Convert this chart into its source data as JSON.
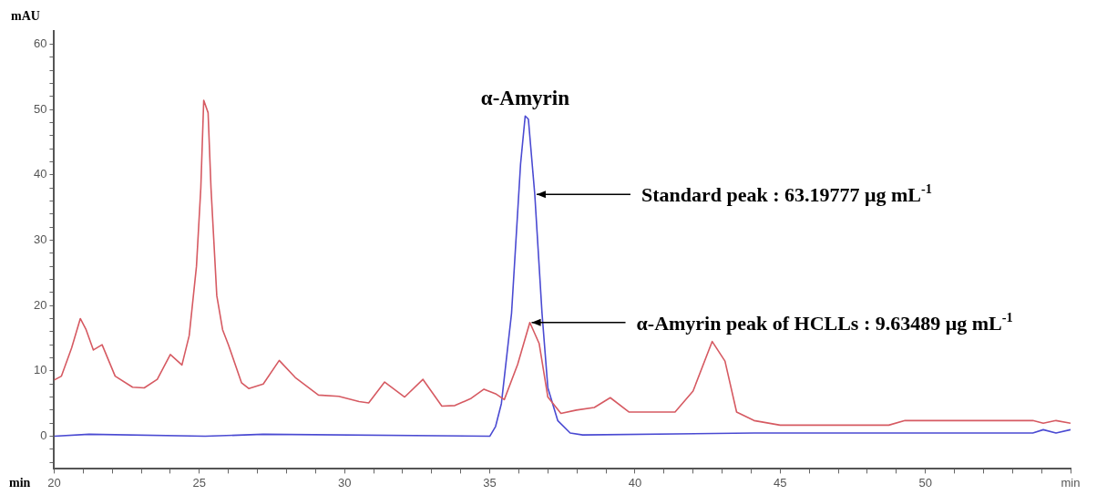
{
  "chart_data": {
    "type": "line",
    "xlabel": "min",
    "ylabel": "mAU",
    "xlim": [
      20,
      55
    ],
    "ylim": [
      -5,
      62
    ],
    "xticks": [
      20,
      {
        "value": 21,
        "label": null
      },
      {
        "value": 22,
        "label": null
      },
      {
        "value": 23,
        "label": null
      },
      {
        "value": 24,
        "label": null
      },
      25,
      {
        "value": 26,
        "label": null
      },
      {
        "value": 27,
        "label": null
      },
      {
        "value": 28,
        "label": null
      },
      {
        "value": 29,
        "label": null
      },
      30,
      {
        "value": 31,
        "label": null
      },
      {
        "value": 32,
        "label": null
      },
      {
        "value": 33,
        "label": null
      },
      {
        "value": 34,
        "label": null
      },
      35,
      {
        "value": 36,
        "label": null
      },
      {
        "value": 37,
        "label": null
      },
      {
        "value": 38,
        "label": null
      },
      {
        "value": 39,
        "label": null
      },
      40,
      {
        "value": 41,
        "label": null
      },
      {
        "value": 42,
        "label": null
      },
      {
        "value": 43,
        "label": null
      },
      {
        "value": 44,
        "label": null
      },
      45,
      {
        "value": 46,
        "label": null
      },
      {
        "value": 47,
        "label": null
      },
      {
        "value": 48,
        "label": null
      },
      {
        "value": 49,
        "label": null
      },
      50,
      {
        "value": 51,
        "label": null
      },
      {
        "value": 52,
        "label": null
      },
      {
        "value": 53,
        "label": null
      },
      {
        "value": 54,
        "label": null
      },
      {
        "value": 55,
        "label": "min"
      }
    ],
    "yticks": [
      {
        "value": -4,
        "label": null
      },
      {
        "value": -2,
        "label": null
      },
      0,
      {
        "value": 2,
        "label": null
      },
      {
        "value": 4,
        "label": null
      },
      {
        "value": 6,
        "label": null
      },
      {
        "value": 8,
        "label": null
      },
      10,
      {
        "value": 12,
        "label": null
      },
      {
        "value": 14,
        "label": null
      },
      {
        "value": 16,
        "label": null
      },
      {
        "value": 18,
        "label": null
      },
      20,
      {
        "value": 22,
        "label": null
      },
      {
        "value": 24,
        "label": null
      },
      {
        "value": 26,
        "label": null
      },
      {
        "value": 28,
        "label": null
      },
      30,
      {
        "value": 32,
        "label": null
      },
      {
        "value": 34,
        "label": null
      },
      {
        "value": 36,
        "label": null
      },
      {
        "value": 38,
        "label": null
      },
      40,
      {
        "value": 42,
        "label": null
      },
      {
        "value": 44,
        "label": null
      },
      {
        "value": 46,
        "label": null
      },
      {
        "value": 48,
        "label": null
      },
      50,
      {
        "value": 52,
        "label": null
      },
      {
        "value": 54,
        "label": null
      },
      {
        "value": 56,
        "label": null
      },
      {
        "value": 58,
        "label": null
      },
      60
    ],
    "grid": false,
    "legend": false,
    "marker": "none",
    "line_style": "solid",
    "series": [
      {
        "color": "#d65a62",
        "x": [
          20,
          20.25,
          20.6,
          20.9,
          21.1,
          21.35,
          21.65,
          22.1,
          22.7,
          23.1,
          23.55,
          24.0,
          24.4,
          24.65,
          24.9,
          25.05,
          25.15,
          25.3,
          25.4,
          25.6,
          25.8,
          26.0,
          26.45,
          26.7,
          27.2,
          27.75,
          28.3,
          29.1,
          29.8,
          30.5,
          30.83,
          31.38,
          32.07,
          32.7,
          33.35,
          33.8,
          34.36,
          34.8,
          35.2,
          35.5,
          35.96,
          36.38,
          36.7,
          37.0,
          37.45,
          37.98,
          38.6,
          39.15,
          39.8,
          41.38,
          42.0,
          42.66,
          43.1,
          43.5,
          44.1,
          45.0,
          48.74,
          49.3,
          53.7,
          54.06,
          54.5,
          55
        ],
        "values": [
          8.6,
          9.2,
          13.5,
          18,
          16.3,
          13.2,
          14,
          9.2,
          7.5,
          7.4,
          8.7,
          12.5,
          10.9,
          15.4,
          26,
          38,
          51.4,
          49.5,
          38,
          21.5,
          16.3,
          14,
          8.2,
          7.3,
          8,
          11.6,
          9,
          6.3,
          6.1,
          5.3,
          5.1,
          8.3,
          6.0,
          8.7,
          4.6,
          4.7,
          5.8,
          7.2,
          6.5,
          5.6,
          11,
          17.4,
          14.2,
          6.0,
          3.5,
          4.0,
          4.4,
          5.9,
          3.7,
          3.7,
          6.9,
          14.5,
          11.5,
          3.7,
          2.4,
          1.7,
          1.7,
          2.4,
          2.4,
          2.0,
          2.4,
          2.0
        ]
      },
      {
        "color": "#4a4ad2",
        "x": [
          20,
          21.2,
          25.2,
          27.2,
          35.0,
          35.2,
          35.4,
          35.75,
          36.06,
          36.22,
          36.33,
          36.55,
          36.8,
          37.0,
          37.34,
          37.77,
          38.2,
          44.1,
          53.7,
          54.06,
          54.5,
          55
        ],
        "values": [
          0,
          0.3,
          0,
          0.3,
          0,
          1.5,
          5,
          18.8,
          41.6,
          49,
          48.5,
          37,
          18.8,
          7.4,
          2.4,
          0.5,
          0.2,
          0.5,
          0.5,
          1.0,
          0.5,
          1.0
        ]
      }
    ],
    "annotations": [
      {
        "text": "α-Amyrin",
        "x": 36.22,
        "y": 49
      },
      {
        "text": "Standard peak : 63.19777 μg mL$^{-1}$",
        "x": 36.55,
        "y": 37
      },
      {
        "text": "α-Amyrin peak of HCLLs : 9.63489 μg mL$^{-1}$",
        "x": 36.38,
        "y": 17.4
      }
    ]
  }
}
